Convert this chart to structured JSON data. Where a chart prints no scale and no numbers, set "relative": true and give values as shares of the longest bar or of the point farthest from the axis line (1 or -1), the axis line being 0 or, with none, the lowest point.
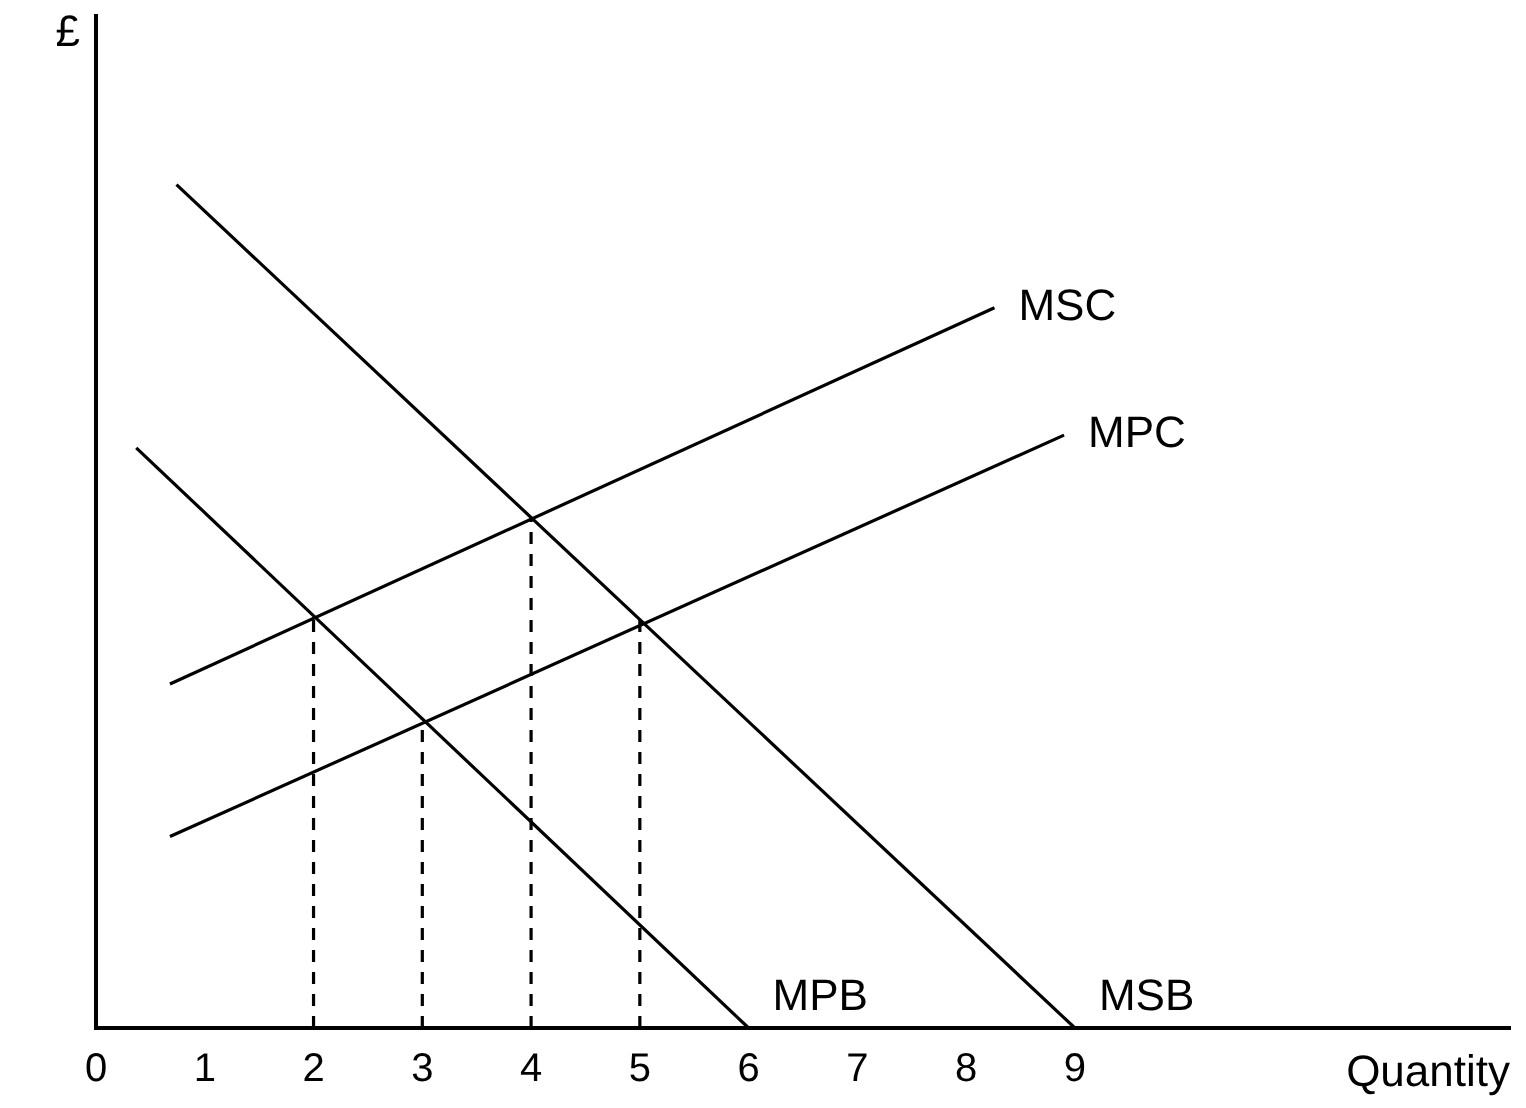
{
  "chart_data": {
    "type": "line",
    "relative": true,
    "xlabel": "Quantity",
    "ylabel": "£",
    "xlim": [
      0,
      13
    ],
    "xticks": [
      0,
      1,
      2,
      3,
      4,
      5,
      6,
      7,
      8,
      9
    ],
    "tick_labels": "x",
    "grid": false,
    "legend": false,
    "marker": "none",
    "series": [
      {
        "name": "MSB",
        "color": "#000000",
        "x": [
          0.74,
          9
        ],
        "values": [
          1,
          0
        ]
      },
      {
        "name": "MPB",
        "color": "#000000",
        "x": [
          0.37,
          6
        ],
        "values": [
          0.688,
          0
        ]
      },
      {
        "name": "MSC",
        "color": "#000000",
        "x": [
          0.68,
          8.26
        ],
        "values": [
          0.408,
          0.854
        ]
      },
      {
        "name": "MPC",
        "color": "#000000",
        "x": [
          0.68,
          8.9
        ],
        "values": [
          0.227,
          0.703
        ]
      },
      {
        "color": "#000000",
        "line_style": "dashed",
        "x": [
          2,
          2
        ],
        "values": [
          0,
          0.489
        ]
      },
      {
        "color": "#000000",
        "line_style": "dashed",
        "x": [
          3,
          3
        ],
        "values": [
          0,
          0.366
        ]
      },
      {
        "color": "#000000",
        "line_style": "dashed",
        "x": [
          4,
          4
        ],
        "values": [
          0,
          0.605
        ]
      },
      {
        "color": "#000000",
        "line_style": "dashed",
        "x": [
          5,
          5
        ],
        "values": [
          0,
          0.484
        ]
      }
    ]
  }
}
